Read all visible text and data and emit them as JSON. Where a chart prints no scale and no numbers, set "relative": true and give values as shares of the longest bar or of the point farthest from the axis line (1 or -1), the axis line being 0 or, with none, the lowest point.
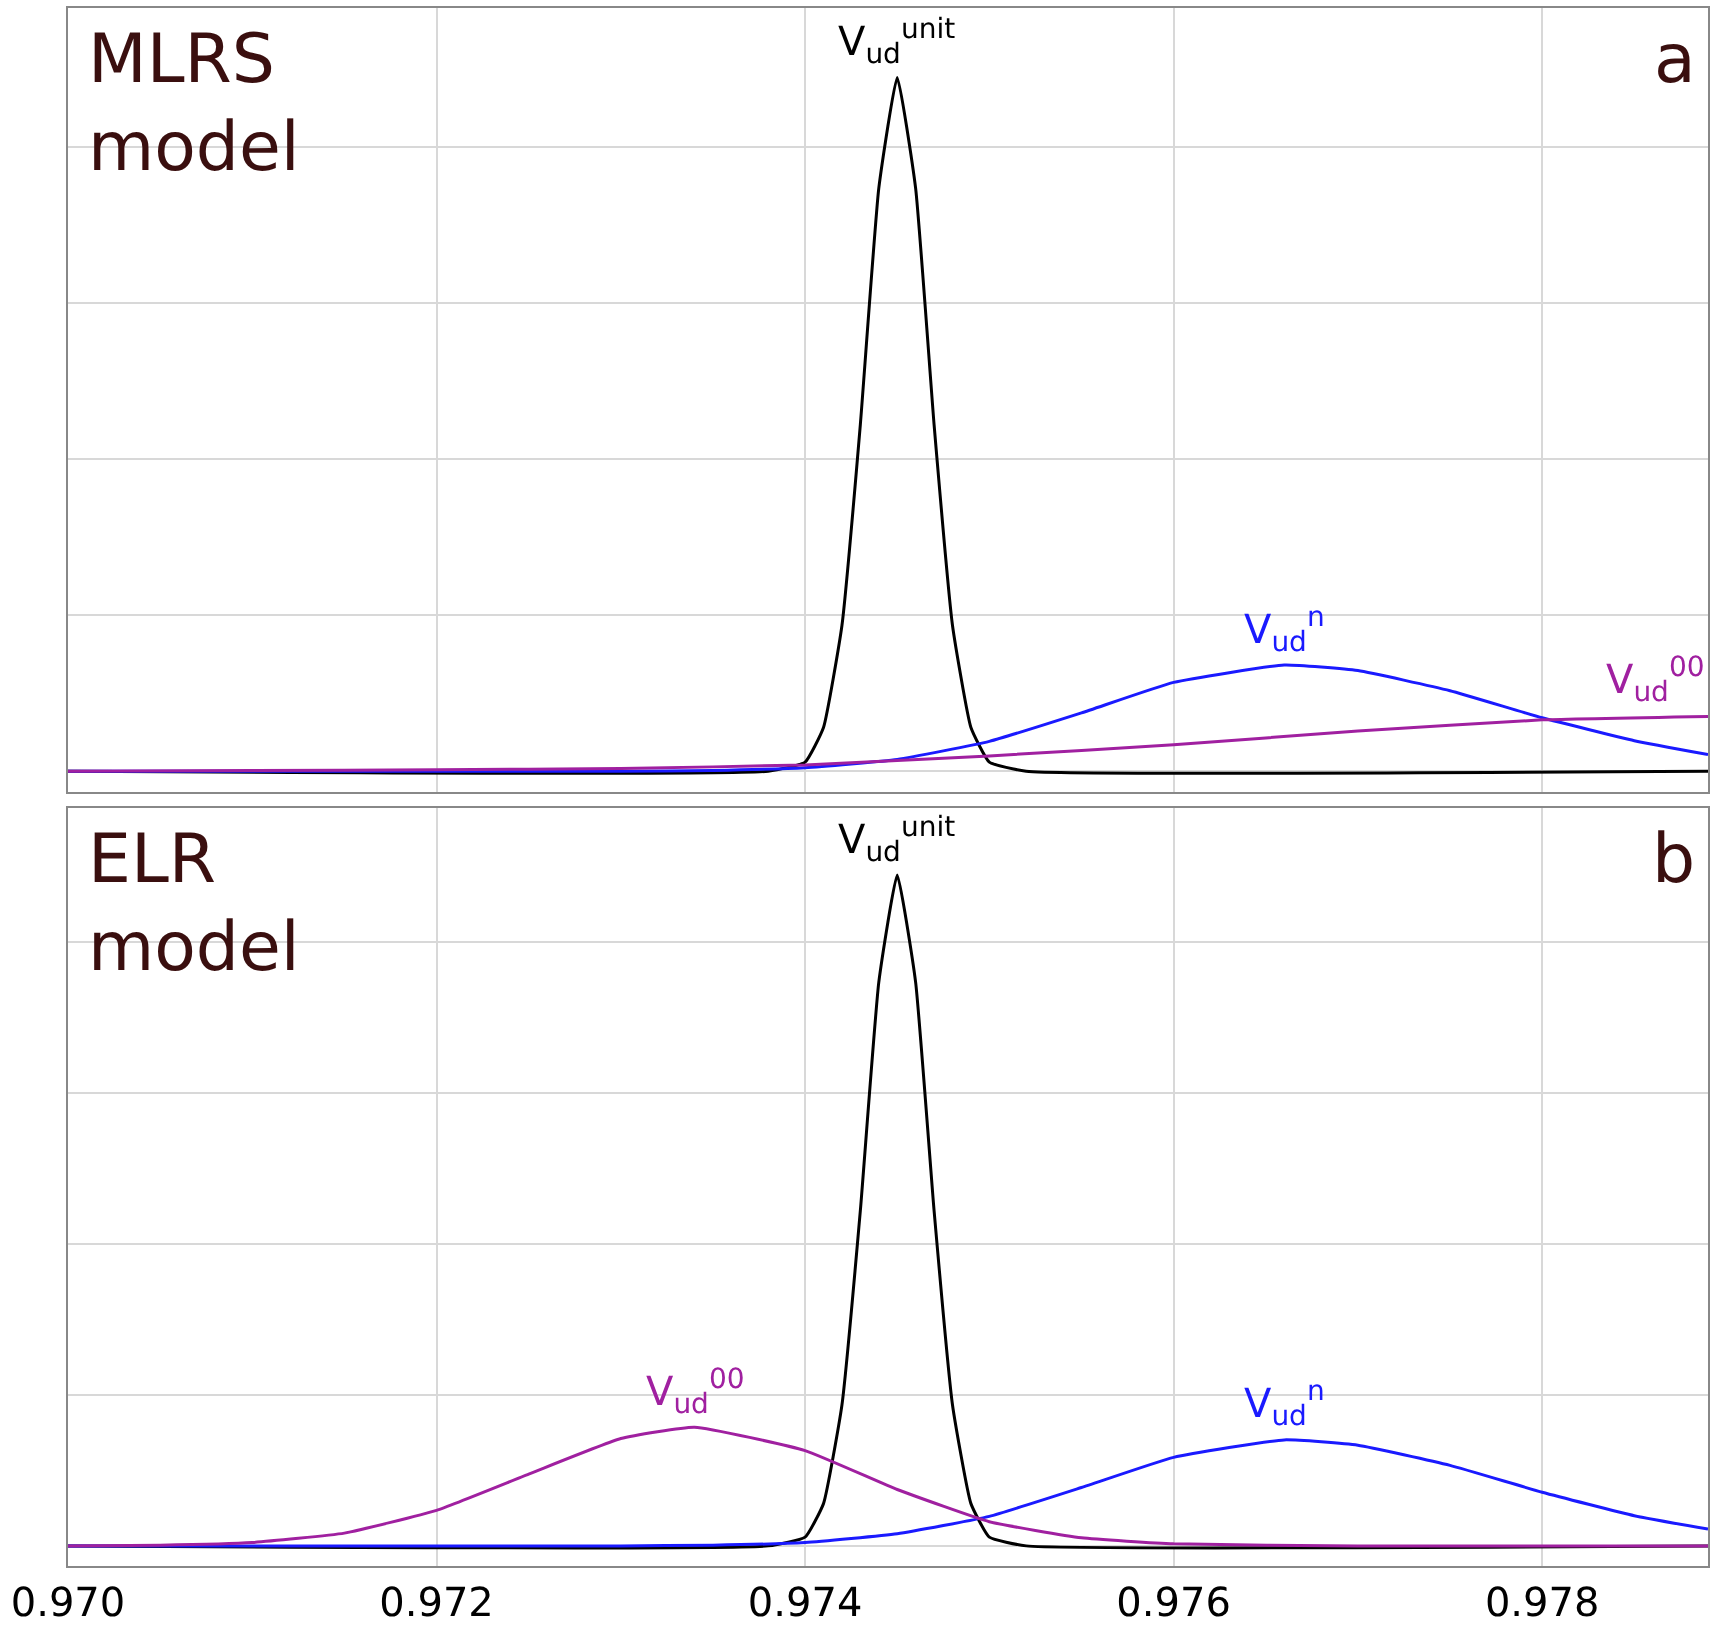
{
  "chart_data": [
    {
      "type": "line",
      "relative": true,
      "xlim": [
        0.97,
        0.9789
      ],
      "xticks": [
        0.972,
        0.974,
        0.976,
        0.978
      ],
      "tick_labels": false,
      "grid": true,
      "legend": false,
      "marker": "none",
      "line_style": "solid",
      "annotations": [
        "MLRS model",
        "a"
      ],
      "series": [
        {
          "name": "V$_{ud}$$^{unit}$",
          "color": "#000000",
          "x": [
            0.97,
            0.9738,
            0.974,
            0.9741,
            0.9742,
            0.9743,
            0.9744,
            0.9745,
            0.9746,
            0.9747,
            0.9748,
            0.9749,
            0.975,
            0.9752,
            0.9789
          ],
          "values": [
            0,
            0,
            0.013,
            0.063,
            0.21,
            0.5,
            0.84,
            1,
            0.84,
            0.5,
            0.21,
            0.063,
            0.013,
            0,
            0
          ]
        },
        {
          "name": "V$_{ud}$$^{n}$",
          "color": "#1a1aff",
          "x": [
            0.97,
            0.973,
            0.9735,
            0.974,
            0.9745,
            0.975,
            0.9755,
            0.976,
            0.9766,
            0.977,
            0.9775,
            0.978,
            0.9785,
            0.9789
          ],
          "values": [
            0,
            0,
            0.001,
            0.005,
            0.017,
            0.043,
            0.084,
            0.128,
            0.153,
            0.145,
            0.116,
            0.077,
            0.044,
            0.024
          ]
        },
        {
          "name": "V$_{ud}$$^{00}$",
          "color": "#a020a0",
          "x": [
            0.97,
            0.971,
            0.972,
            0.973,
            0.974,
            0.975,
            0.976,
            0.977,
            0.978,
            0.9789
          ],
          "values": [
            0,
            0.001,
            0.002,
            0.004,
            0.009,
            0.022,
            0.038,
            0.058,
            0.074,
            0.079
          ]
        }
      ]
    },
    {
      "type": "line",
      "relative": true,
      "xlim": [
        0.97,
        0.9789
      ],
      "xticks": [
        {
          "value": 0.97,
          "label": "0.970"
        },
        0.972,
        0.974,
        0.976,
        0.978
      ],
      "tick_labels": "x",
      "grid": true,
      "legend": false,
      "marker": "none",
      "line_style": "solid",
      "annotations": [
        "ELR model",
        "b"
      ],
      "series": [
        {
          "name": "V$_{ud}$$^{unit}$",
          "color": "#000000",
          "x": [
            0.97,
            0.9738,
            0.974,
            0.9741,
            0.9742,
            0.9743,
            0.9744,
            0.9745,
            0.9746,
            0.9747,
            0.9748,
            0.9749,
            0.975,
            0.9752,
            0.9789
          ],
          "values": [
            0,
            0,
            0.013,
            0.063,
            0.21,
            0.5,
            0.84,
            1,
            0.84,
            0.5,
            0.21,
            0.063,
            0.013,
            0,
            0
          ]
        },
        {
          "name": "V$_{ud}$$^{n}$",
          "color": "#1a1aff",
          "x": [
            0.97,
            0.973,
            0.9735,
            0.974,
            0.9745,
            0.975,
            0.9755,
            0.976,
            0.9766,
            0.977,
            0.9775,
            0.978,
            0.9785,
            0.9789
          ],
          "values": [
            0,
            0,
            0.001,
            0.005,
            0.018,
            0.044,
            0.087,
            0.132,
            0.158,
            0.15,
            0.12,
            0.08,
            0.045,
            0.025
          ]
        },
        {
          "name": "V$_{ud}$$^{00}$",
          "color": "#a020a0",
          "x": [
            0.97,
            0.9705,
            0.971,
            0.9715,
            0.972,
            0.9725,
            0.973,
            0.9734,
            0.974,
            0.9745,
            0.975,
            0.9755,
            0.976,
            0.977,
            0.9789
          ],
          "values": [
            0,
            0.001,
            0.005,
            0.019,
            0.053,
            0.107,
            0.16,
            0.177,
            0.142,
            0.084,
            0.036,
            0.012,
            0.003,
            0,
            0
          ]
        }
      ]
    }
  ]
}
